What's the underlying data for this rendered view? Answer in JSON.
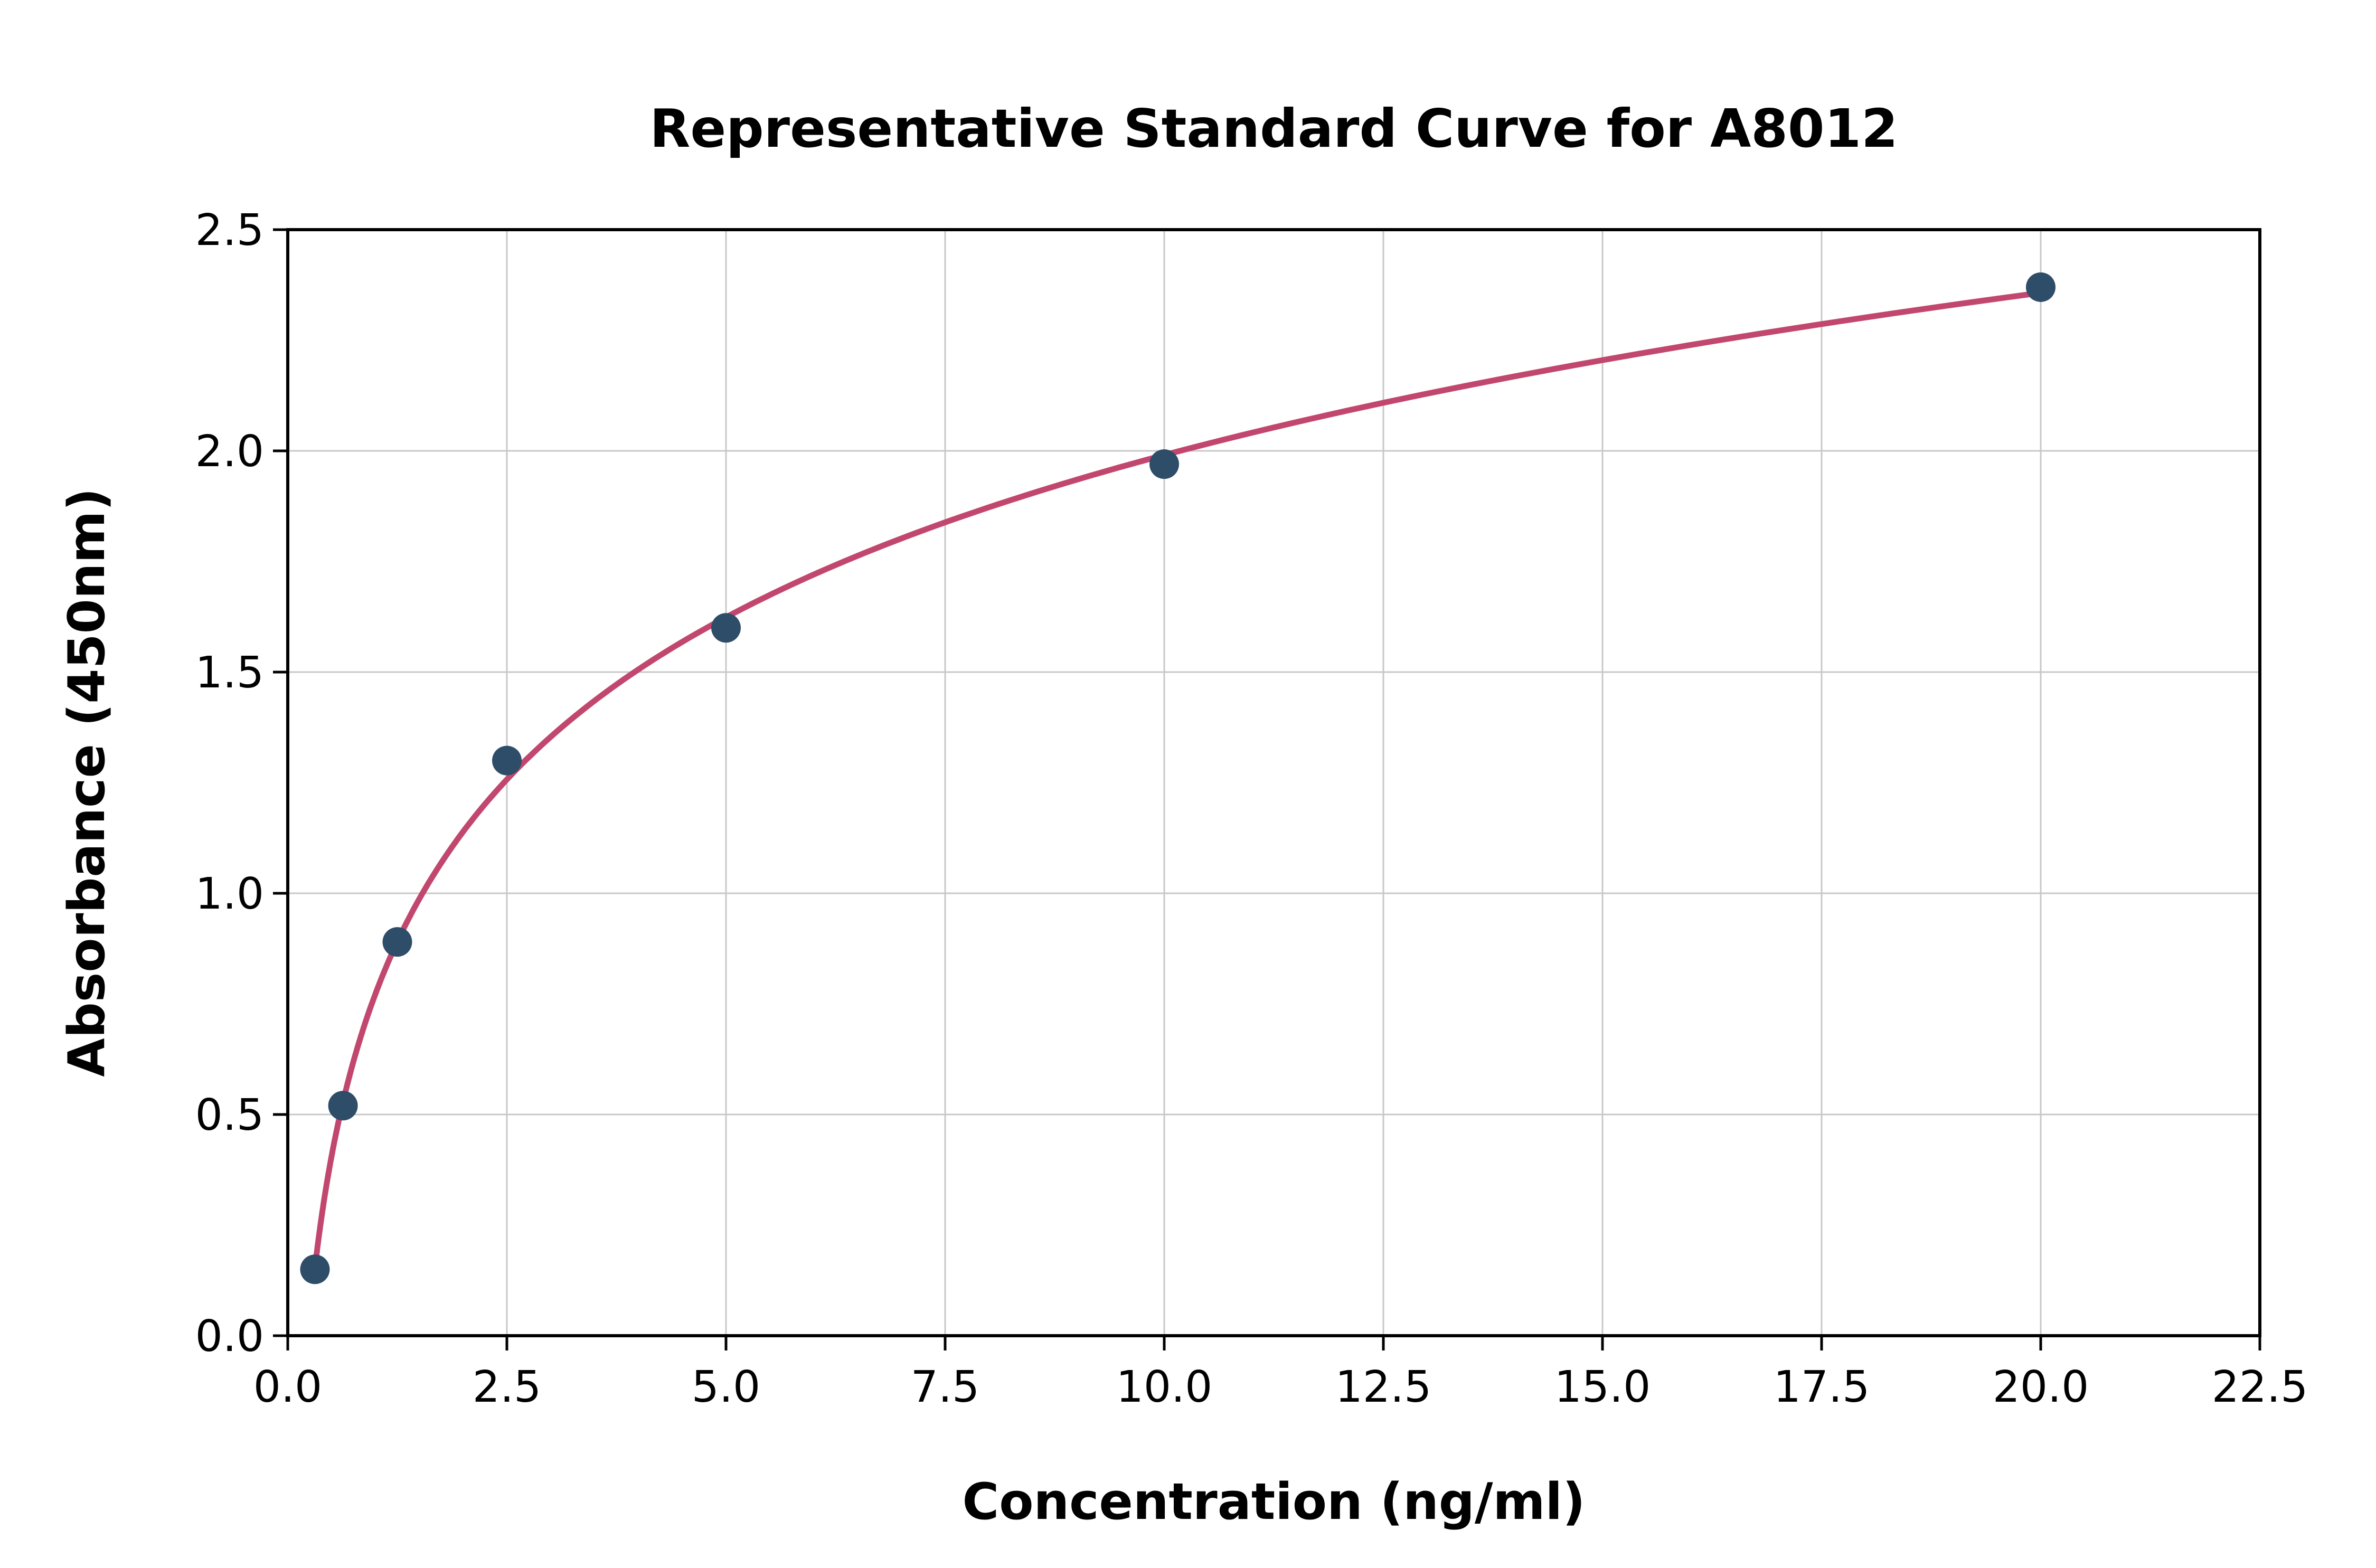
{
  "page": {
    "title": "Representative Standard Curve for A8012"
  },
  "chart_data": {
    "type": "scatter",
    "title": "Representative Standard Curve for A8012",
    "xlabel": "Concentration (ng/ml)",
    "ylabel": "Absorbance (450nm)",
    "xlim": [
      0,
      22.5
    ],
    "ylim": [
      0,
      2.5
    ],
    "x_ticks": [
      0,
      2.5,
      5,
      7.5,
      10,
      12.5,
      15,
      17.5,
      20,
      22.5
    ],
    "x_tick_labels": [
      "0.0",
      "2.5",
      "5.0",
      "7.5",
      "10.0",
      "12.5",
      "15.0",
      "17.5",
      "20.0",
      "22.5"
    ],
    "y_ticks": [
      0,
      0.5,
      1.0,
      1.5,
      2.0,
      2.5
    ],
    "y_tick_labels": [
      "0.0",
      "0.5",
      "1.0",
      "1.5",
      "2.0",
      "2.5"
    ],
    "grid": true,
    "legend": false,
    "points": {
      "x": [
        0.31,
        0.63,
        1.25,
        2.5,
        5,
        10,
        20
      ],
      "y": [
        0.15,
        0.52,
        0.89,
        1.3,
        1.6,
        1.97,
        2.37
      ]
    },
    "curve_fit": {
      "type": "log",
      "a": 0.529,
      "b": 0.7725,
      "x_start": 0.31,
      "x_end": 20
    },
    "colors": {
      "curve": "#c2476f",
      "points": "#2e4d68",
      "grid": "#c8c8c8",
      "axes": "#000000",
      "background": "#ffffff"
    }
  }
}
